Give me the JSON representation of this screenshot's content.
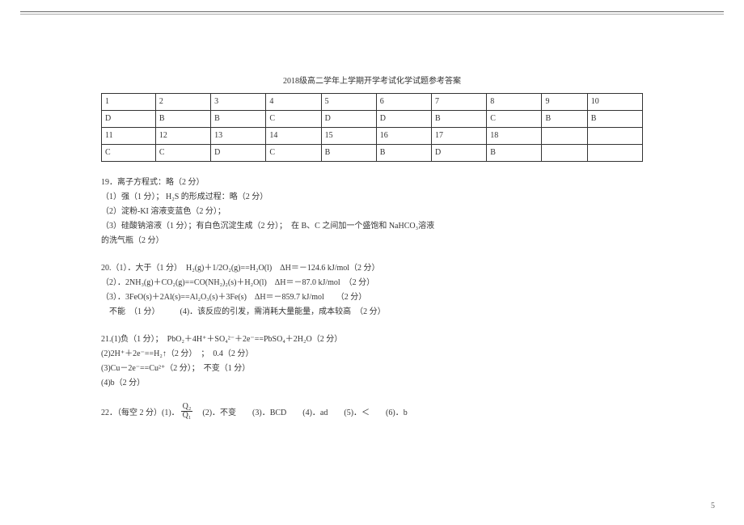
{
  "title": "2018级高二学年上学期开学考试化学试题参考答案",
  "table": {
    "rows": [
      [
        "1",
        "2",
        "3",
        "4",
        "5",
        "6",
        "7",
        "8",
        "9",
        "10"
      ],
      [
        "D",
        "B",
        "B",
        "C",
        "D",
        "D",
        "B",
        "C",
        "B",
        "B"
      ],
      [
        "11",
        "12",
        "13",
        "14",
        "15",
        "16",
        "17",
        "18",
        "",
        ""
      ],
      [
        "C",
        "C",
        "D",
        "C",
        "B",
        "B",
        "D",
        "B",
        "",
        ""
      ]
    ]
  },
  "q19": {
    "head": "19．离子方程式：略（2 分）",
    "l1a": "（1）强（1 分）；",
    "l1b": "H₂S 的形成过程：略（2 分）",
    "l2": "（2）淀粉-KI 溶液变蓝色（2 分）；",
    "l3": "（3）硅酸钠溶液（1 分）；有白色沉淀生成（2 分）；　在 B、C 之间加一个盛饱和 NaHCO₃溶液",
    "l3b": "的洗气瓶（2 分）"
  },
  "q20": {
    "l1": "20.（1）．大于（1 分）　H₂(g)＋1/2O₂(g)==H₂O(l)　ΔH＝－124.6 kJ/mol（2 分）",
    "l2": "（2）．2NH₃(g)＋CO₂(g)==CO(NH₂)₂(s)＋H₂O(l)　ΔH＝－87.0 kJ/mol　（2 分）",
    "l3": "（3）．3FeO(s)＋2Al(s)==Al₂O₃(s)＋3Fe(s)　ΔH＝－859.7 kJ/mol　　（2 分）",
    "l4": "　不能　（1 分）　　　(4)．该反应的引发，需消耗大量能量，成本较高　（2 分）"
  },
  "q21": {
    "l1": "21.(1)负（1 分）；　PbO₂＋4H⁺＋SO₄²⁻＋2e⁻==PbSO₄＋2H₂O（2 分）",
    "l2": "(2)2H⁺＋2e⁻==H₂↑（2 分）　；　0.4（2 分）",
    "l3": "(3)Cu－2e⁻==Cu²⁺（2 分）；　不变（1 分）",
    "l4": "(4)b（2 分）"
  },
  "q22": {
    "pre": "22．（每空 2 分）(1)．",
    "num": "Q₂",
    "den": "Q₁",
    "rest": "　(2)．不变　　(3)．BCD　　(4)．ad　　(5)．＜　　(6)．b"
  },
  "pagenum": "5",
  "colors": {
    "text": "#333333",
    "border": "#333333",
    "bg": "#ffffff"
  }
}
